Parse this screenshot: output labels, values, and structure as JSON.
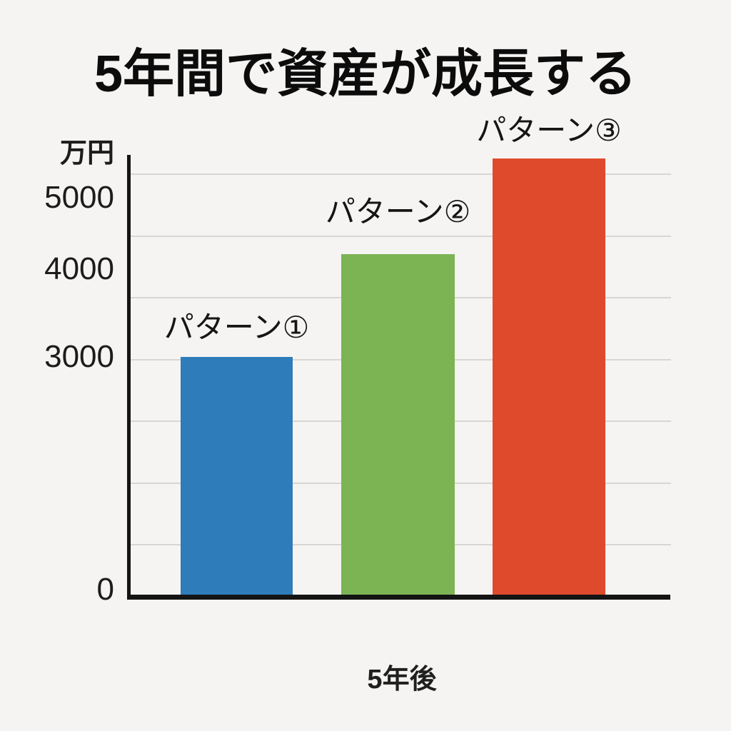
{
  "chart": {
    "title": "5年間で資産が成長する",
    "y_unit_label": "万円",
    "x_tick_label": "5年後"
  },
  "chart_data": {
    "type": "bar",
    "title": "5年間で資産が成長する",
    "categories": [
      "パターン①",
      "パターン②",
      "パターン③"
    ],
    "values": [
      3000,
      4300,
      5500
    ],
    "colors": [
      "#2e7cba",
      "#7cb454",
      "#df4a2c"
    ],
    "xlabel": "5年後",
    "ylabel": "万円",
    "y_ticks": [
      "5000",
      "4000",
      "3000",
      "0"
    ],
    "ylim": [
      0,
      5700
    ],
    "grid": "horizontal-only",
    "legend": "none",
    "value_labels_shown": false,
    "background_color": "#f5f4f2",
    "axis_color": "#141414"
  }
}
